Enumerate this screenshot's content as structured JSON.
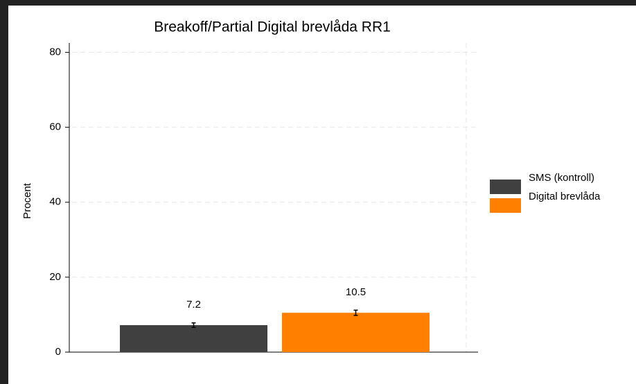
{
  "chart_data": {
    "type": "bar",
    "title": "Breakoff/Partial Digital brevlåda RR1",
    "y_label": "Procent",
    "categories": [
      null
    ],
    "series": [
      {
        "name": "SMS (kontroll)",
        "color": "#404040",
        "values": [
          7.2
        ],
        "errors": [
          0.6
        ]
      },
      {
        "name": "Digital brevlåda",
        "color": "#ff8000",
        "values": [
          10.5
        ],
        "errors": [
          0.7
        ]
      }
    ],
    "ylim": [
      0,
      82.5
    ],
    "yticks": [
      0,
      20,
      40,
      60,
      80
    ],
    "grid": true,
    "legend": "right"
  }
}
